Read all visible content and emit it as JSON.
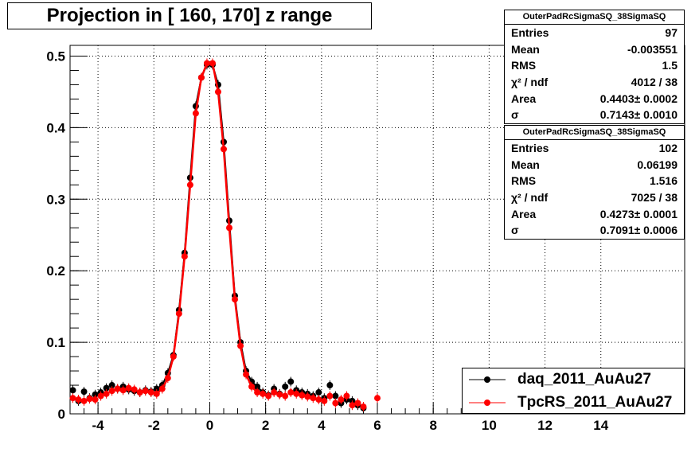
{
  "title": "Projection in [ 160, 170] z range",
  "stats": [
    {
      "name": "OuterPadRcSigmaSQ_38SigmaSQ",
      "rows": [
        {
          "label": "Entries",
          "value": "97"
        },
        {
          "label": "Mean",
          "value": "-0.003551"
        },
        {
          "label": "RMS",
          "value": "1.5"
        },
        {
          "label": "χ² / ndf",
          "value": "4012 / 38"
        },
        {
          "label": "Area",
          "value": "0.4403± 0.0002"
        },
        {
          "label": "σ",
          "value": "0.7143± 0.0010"
        }
      ]
    },
    {
      "name": "OuterPadRcSigmaSQ_38SigmaSQ",
      "rows": [
        {
          "label": "Entries",
          "value": "102"
        },
        {
          "label": "Mean",
          "value": "0.06199"
        },
        {
          "label": "RMS",
          "value": "1.516"
        },
        {
          "label": "χ² / ndf",
          "value": "7025 / 38"
        },
        {
          "label": "Area",
          "value": "0.4273± 0.0001"
        },
        {
          "label": "σ",
          "value": "0.7091± 0.0006"
        }
      ]
    }
  ],
  "legend": [
    {
      "label": "daq_2011_AuAu27",
      "color": "#000000"
    },
    {
      "label": "TpcRS_2011_AuAu27",
      "color": "#ff0000"
    }
  ],
  "chart_data": {
    "type": "scatter",
    "title": "Projection in [ 160, 170] z range",
    "xlabel": "",
    "ylabel": "",
    "xlim": [
      -5,
      17
    ],
    "ylim": [
      0,
      0.515
    ],
    "xticks": [
      -4,
      -2,
      0,
      2,
      4,
      6,
      8,
      10,
      12,
      14
    ],
    "yticks": [
      0,
      0.1,
      0.2,
      0.3,
      0.4,
      0.5
    ],
    "grid": true,
    "legend_position": "bottom-right",
    "series": [
      {
        "name": "daq_2011_AuAu27",
        "color": "#000000",
        "x": [
          -4.9,
          -4.7,
          -4.5,
          -4.3,
          -4.1,
          -3.9,
          -3.7,
          -3.5,
          -3.3,
          -3.1,
          -2.9,
          -2.7,
          -2.5,
          -2.3,
          -2.1,
          -1.9,
          -1.7,
          -1.5,
          -1.3,
          -1.1,
          -0.9,
          -0.7,
          -0.5,
          -0.3,
          -0.1,
          0.1,
          0.3,
          0.5,
          0.7,
          0.9,
          1.1,
          1.3,
          1.5,
          1.7,
          1.9,
          2.1,
          2.3,
          2.5,
          2.7,
          2.9,
          3.1,
          3.3,
          3.5,
          3.7,
          3.9,
          4.1,
          4.3,
          4.5,
          4.7,
          4.9,
          5.1,
          5.3,
          5.5
        ],
        "y": [
          0.033,
          0.018,
          0.031,
          0.022,
          0.027,
          0.03,
          0.036,
          0.04,
          0.035,
          0.038,
          0.034,
          0.032,
          0.03,
          0.033,
          0.031,
          0.035,
          0.04,
          0.057,
          0.082,
          0.145,
          0.225,
          0.33,
          0.43,
          0.47,
          0.488,
          0.488,
          0.46,
          0.38,
          0.27,
          0.165,
          0.1,
          0.06,
          0.045,
          0.038,
          0.03,
          0.026,
          0.035,
          0.028,
          0.038,
          0.045,
          0.033,
          0.03,
          0.028,
          0.025,
          0.03,
          0.022,
          0.04,
          0.025,
          0.015,
          0.02,
          0.018,
          0.012,
          0.008
        ]
      },
      {
        "name": "TpcRS_2011_AuAu27",
        "color": "#ff0000",
        "x": [
          -4.9,
          -4.7,
          -4.5,
          -4.3,
          -4.1,
          -3.9,
          -3.7,
          -3.5,
          -3.3,
          -3.1,
          -2.9,
          -2.7,
          -2.5,
          -2.3,
          -2.1,
          -1.9,
          -1.7,
          -1.5,
          -1.3,
          -1.1,
          -0.9,
          -0.7,
          -0.5,
          -0.3,
          -0.1,
          0.1,
          0.3,
          0.5,
          0.7,
          0.9,
          1.1,
          1.3,
          1.5,
          1.7,
          1.9,
          2.1,
          2.3,
          2.5,
          2.7,
          2.9,
          3.1,
          3.3,
          3.5,
          3.7,
          3.9,
          4.1,
          4.3,
          4.5,
          4.7,
          4.9,
          5.1,
          5.3,
          5.5,
          6.0
        ],
        "y": [
          0.022,
          0.02,
          0.018,
          0.021,
          0.02,
          0.025,
          0.028,
          0.032,
          0.035,
          0.033,
          0.036,
          0.034,
          0.03,
          0.032,
          0.03,
          0.028,
          0.035,
          0.05,
          0.08,
          0.14,
          0.22,
          0.32,
          0.42,
          0.47,
          0.49,
          0.49,
          0.45,
          0.37,
          0.26,
          0.16,
          0.095,
          0.055,
          0.038,
          0.03,
          0.028,
          0.025,
          0.03,
          0.027,
          0.025,
          0.03,
          0.028,
          0.026,
          0.024,
          0.022,
          0.02,
          0.018,
          0.025,
          0.015,
          0.02,
          0.025,
          0.012,
          0.015,
          0.01,
          0.022
        ]
      }
    ]
  }
}
